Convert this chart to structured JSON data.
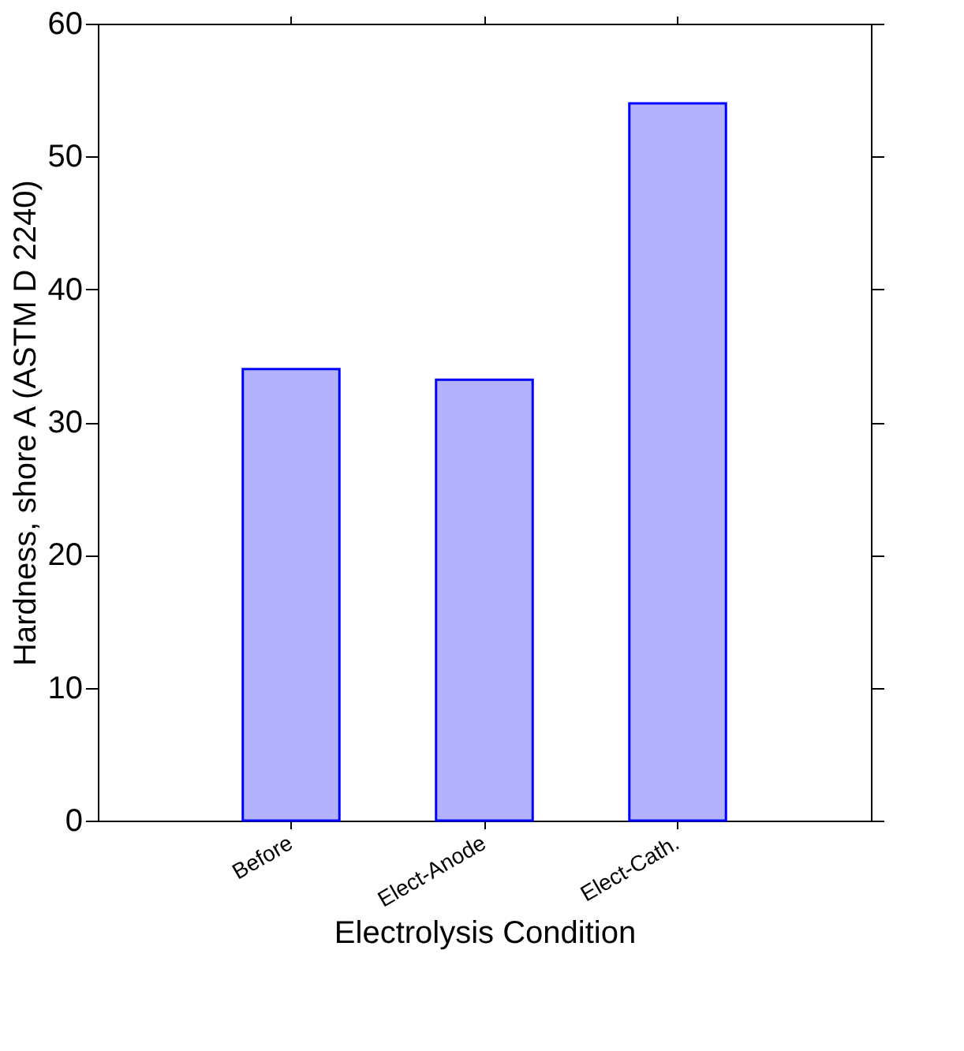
{
  "chart_data": {
    "type": "bar",
    "xlabel": "Electrolysis Condition",
    "ylabel": "Hardness, shore A (ASTM D 2240)",
    "categories": [
      "Before",
      "Elect-Anode",
      "Elect-Cath."
    ],
    "values": [
      34,
      33.2,
      54
    ],
    "color": "#0000ff",
    "ylim": [
      0,
      60
    ],
    "yticks": [
      0,
      10,
      20,
      30,
      40,
      50,
      60
    ],
    "grid": false
  }
}
